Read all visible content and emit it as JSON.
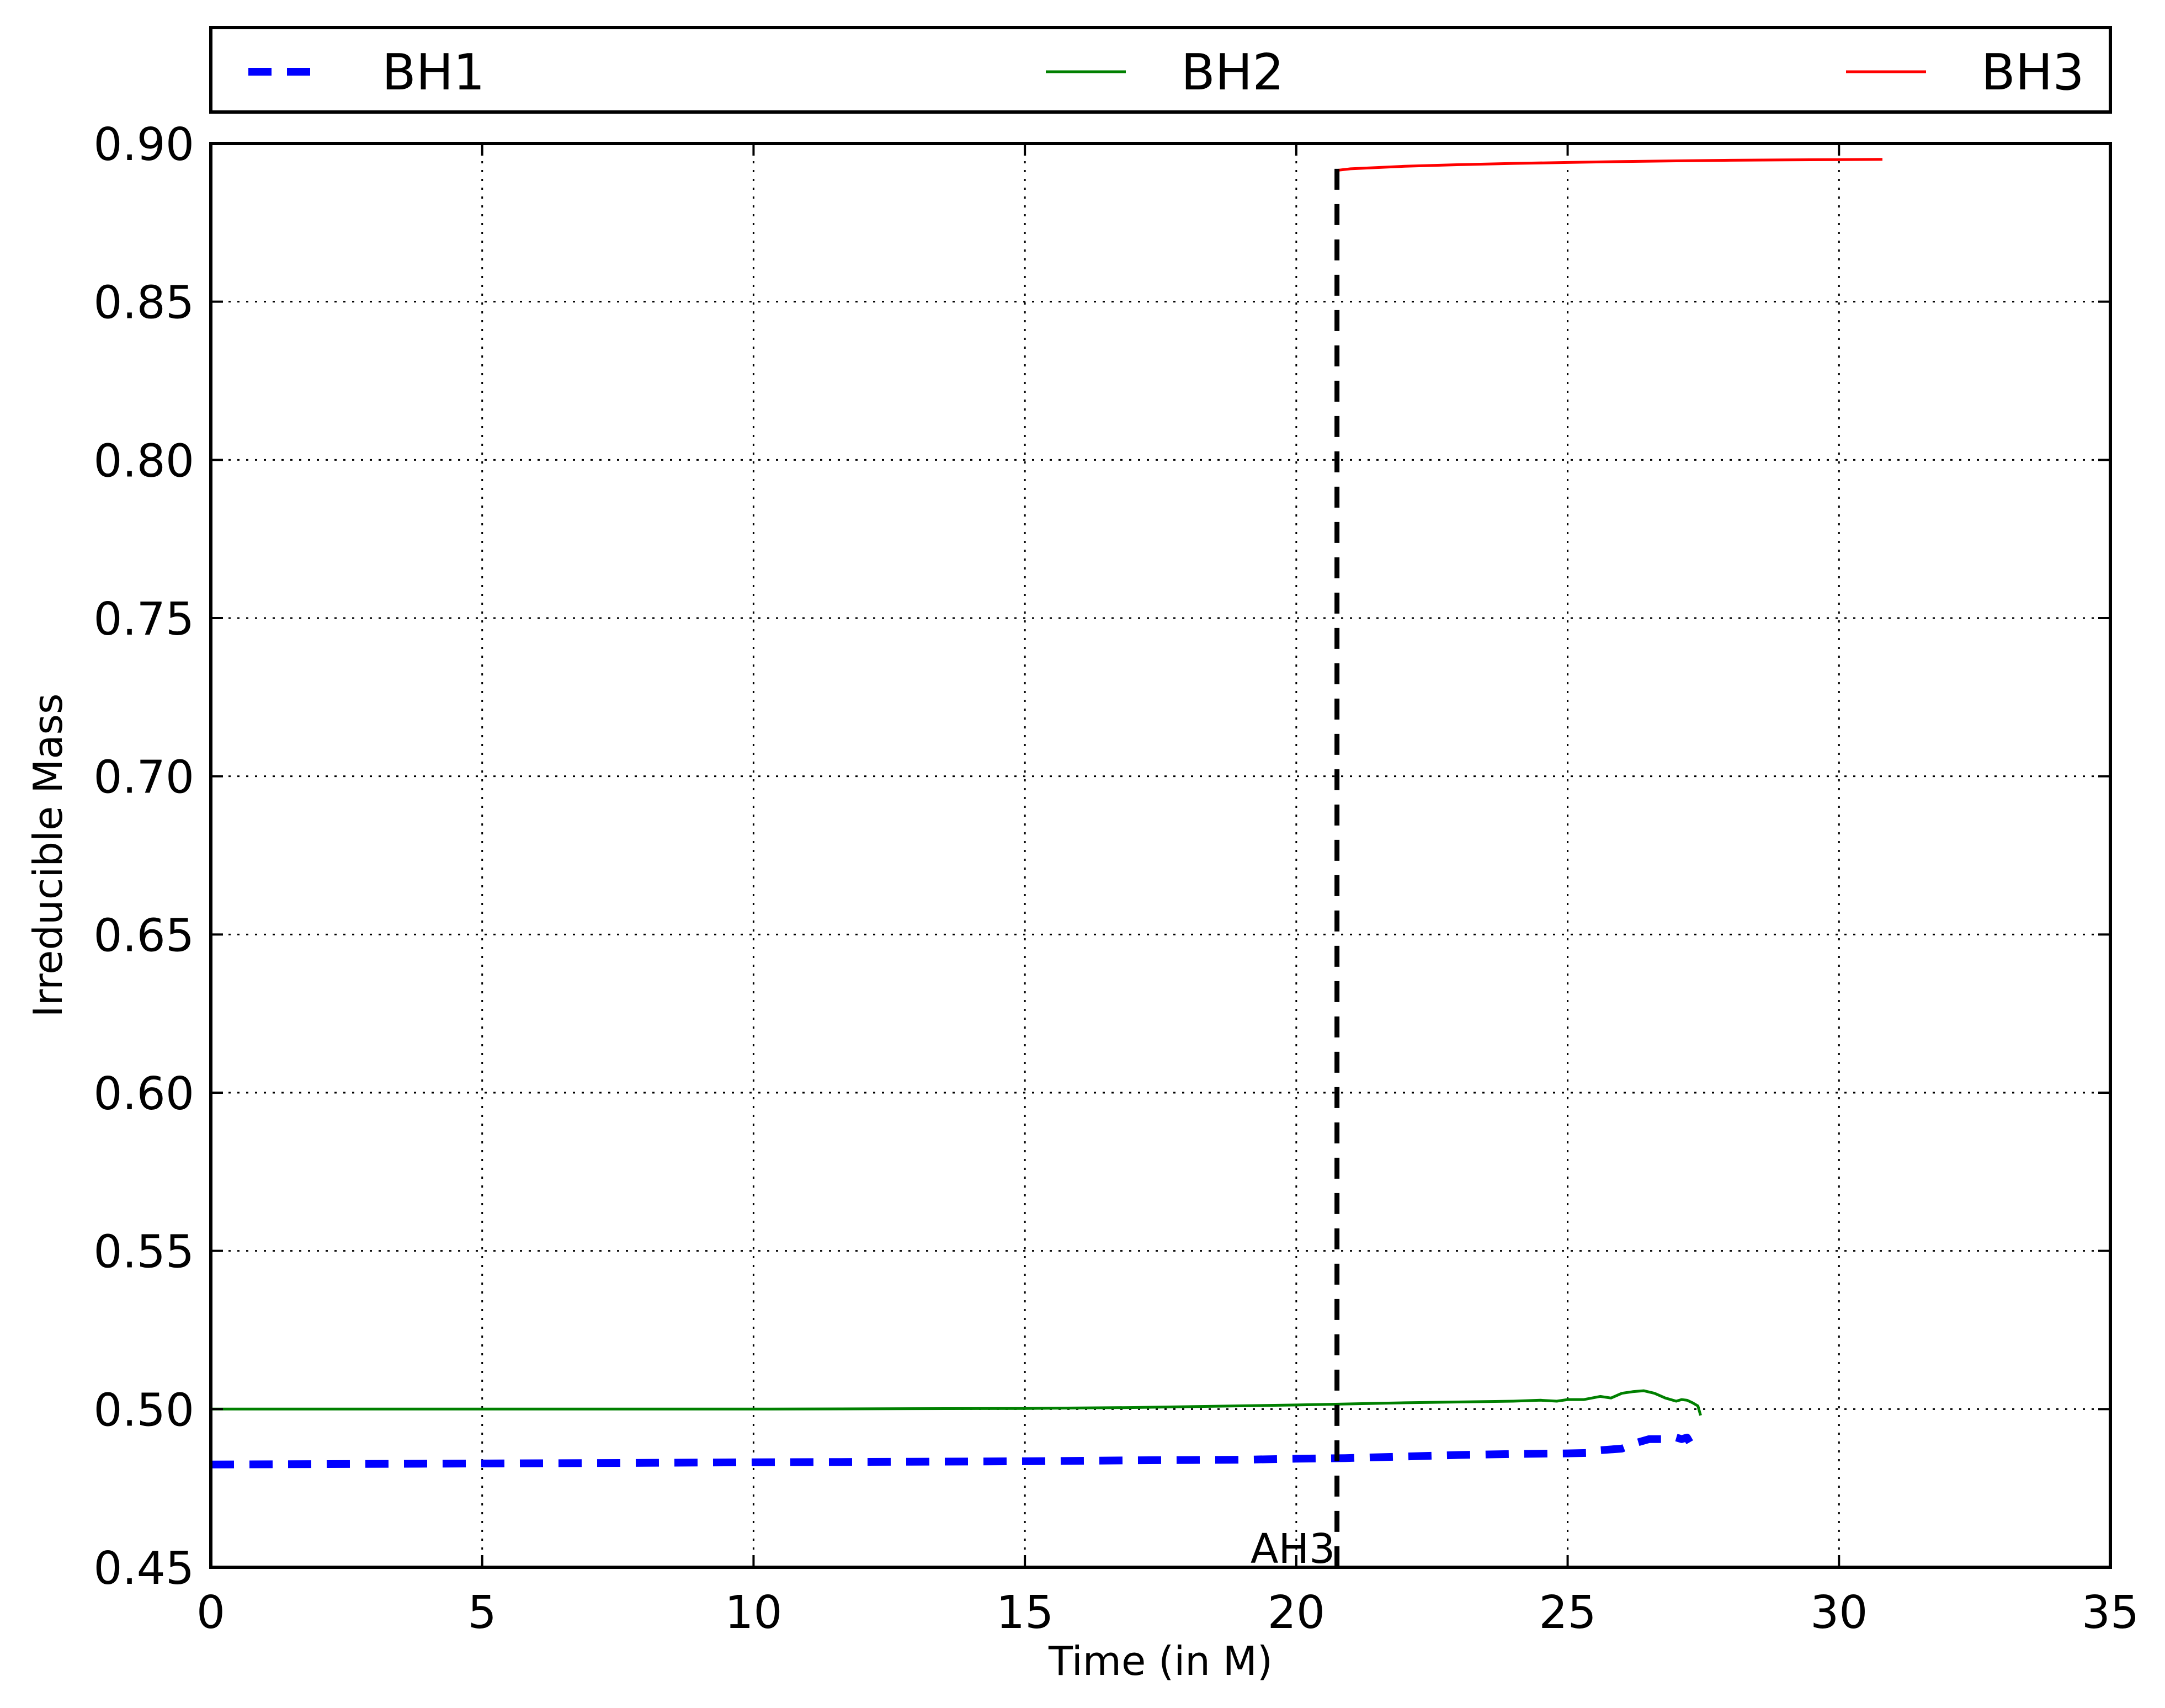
{
  "chart_data": {
    "type": "line",
    "title": "",
    "xlabel": "Time (in M)",
    "ylabel": "Irreducible Mass",
    "xlim": [
      0,
      35
    ],
    "ylim": [
      0.45,
      0.9
    ],
    "xticks": [
      0,
      5,
      10,
      15,
      20,
      25,
      30,
      35
    ],
    "xtick_labels": [
      "0",
      "5",
      "10",
      "15",
      "20",
      "25",
      "30",
      "35"
    ],
    "yticks": [
      0.45,
      0.5,
      0.55,
      0.6,
      0.65,
      0.7,
      0.75,
      0.8,
      0.85,
      0.9
    ],
    "ytick_labels": [
      "0.45",
      "0.50",
      "0.55",
      "0.60",
      "0.65",
      "0.70",
      "0.75",
      "0.80",
      "0.85",
      "0.90"
    ],
    "grid": true,
    "legend_position": "top, above plot",
    "series": [
      {
        "name": "BH1",
        "color": "#0000ff",
        "style": "dashed",
        "x": [
          0,
          2,
          5,
          8,
          10,
          12,
          15,
          17,
          19,
          20,
          20.9,
          22,
          23,
          24,
          25,
          25.5,
          25.6,
          26,
          26.3,
          26.5,
          26.8,
          27.0,
          27.1,
          27.2,
          27.25
        ],
        "y": [
          0.4825,
          0.4826,
          0.4828,
          0.483,
          0.4832,
          0.4833,
          0.4835,
          0.4838,
          0.484,
          0.4843,
          0.4845,
          0.485,
          0.4855,
          0.4858,
          0.486,
          0.4862,
          0.487,
          0.4875,
          0.4895,
          0.4905,
          0.4905,
          0.491,
          0.4905,
          0.491,
          0.4895
        ]
      },
      {
        "name": "BH2",
        "color": "#008000",
        "style": "solid",
        "x": [
          0,
          5,
          10,
          15,
          17,
          20,
          22,
          24,
          24.5,
          24.8,
          25,
          25.3,
          25.6,
          25.8,
          26.0,
          26.2,
          26.4,
          26.6,
          26.8,
          27.0,
          27.1,
          27.2,
          27.3,
          27.4,
          27.45
        ],
        "y": [
          0.5,
          0.5,
          0.5,
          0.5002,
          0.5005,
          0.5013,
          0.502,
          0.5025,
          0.5028,
          0.5025,
          0.503,
          0.503,
          0.504,
          0.5035,
          0.505,
          0.5055,
          0.5058,
          0.505,
          0.5035,
          0.5025,
          0.503,
          0.5028,
          0.502,
          0.501,
          0.498
        ]
      },
      {
        "name": "BH3",
        "color": "#ff0000",
        "style": "solid",
        "x": [
          20.75,
          21,
          22,
          23,
          24,
          25,
          26,
          27,
          28,
          29,
          30,
          30.8
        ],
        "y": [
          0.8915,
          0.892,
          0.8928,
          0.8933,
          0.8937,
          0.894,
          0.8943,
          0.8945,
          0.8947,
          0.8948,
          0.8949,
          0.895
        ]
      }
    ],
    "vline": {
      "x": 20.75,
      "label": "AH3",
      "color": "#000000",
      "style": "dashed"
    }
  }
}
